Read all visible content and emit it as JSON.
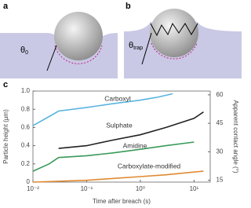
{
  "panels": {
    "a": {
      "letter": "a",
      "symbol": "θ",
      "subscript": "0"
    },
    "b": {
      "letter": "b",
      "symbol": "θ",
      "subscript": "trap"
    }
  },
  "chart_data": {
    "type": "line",
    "letter": "c",
    "x_label": "Time after breach (s)",
    "y_label": "Particle height (μm)",
    "y2_label": "Apparent contact angle (°)",
    "log_x": true,
    "xlim": [
      0.01,
      20
    ],
    "xticks": [
      {
        "value": 0.01,
        "label": "10⁻²"
      },
      {
        "value": 0.1,
        "label": "10⁻¹"
      },
      {
        "value": 1,
        "label": "10⁰"
      },
      {
        "value": 10,
        "label": "10¹"
      }
    ],
    "ylim": [
      0,
      1.0
    ],
    "yticks": [
      0,
      0.2,
      0.4,
      0.6,
      0.8,
      {
        "value": 1.0,
        "label": "1.0"
      }
    ],
    "y2lim": [
      14,
      62
    ],
    "y2ticks": [
      15,
      30,
      45,
      60
    ],
    "series": [
      {
        "name": "Carboxyl",
        "color": "#5ab4e0",
        "x": [
          0.01,
          0.02,
          0.03,
          0.1,
          0.3,
          1,
          2,
          4
        ],
        "values": [
          0.62,
          0.72,
          0.78,
          0.82,
          0.86,
          0.9,
          0.93,
          0.97
        ]
      },
      {
        "name": "Sulphate",
        "color": "#222222",
        "x": [
          0.03,
          0.1,
          0.3,
          1,
          3,
          10,
          15
        ],
        "values": [
          0.37,
          0.4,
          0.46,
          0.52,
          0.6,
          0.7,
          0.77
        ]
      },
      {
        "name": "Amidine",
        "color": "#3a9a5a",
        "x": [
          0.01,
          0.02,
          0.03,
          0.1,
          0.3,
          1,
          3,
          10
        ],
        "values": [
          0.12,
          0.2,
          0.27,
          0.29,
          0.32,
          0.36,
          0.4,
          0.44
        ]
      },
      {
        "name": "Carboxylate-modified",
        "color": "#e08a30",
        "x": [
          0.01,
          0.1,
          0.3,
          1,
          3,
          10,
          15
        ],
        "values": [
          0.0,
          0.02,
          0.04,
          0.06,
          0.08,
          0.11,
          0.12
        ]
      }
    ]
  }
}
